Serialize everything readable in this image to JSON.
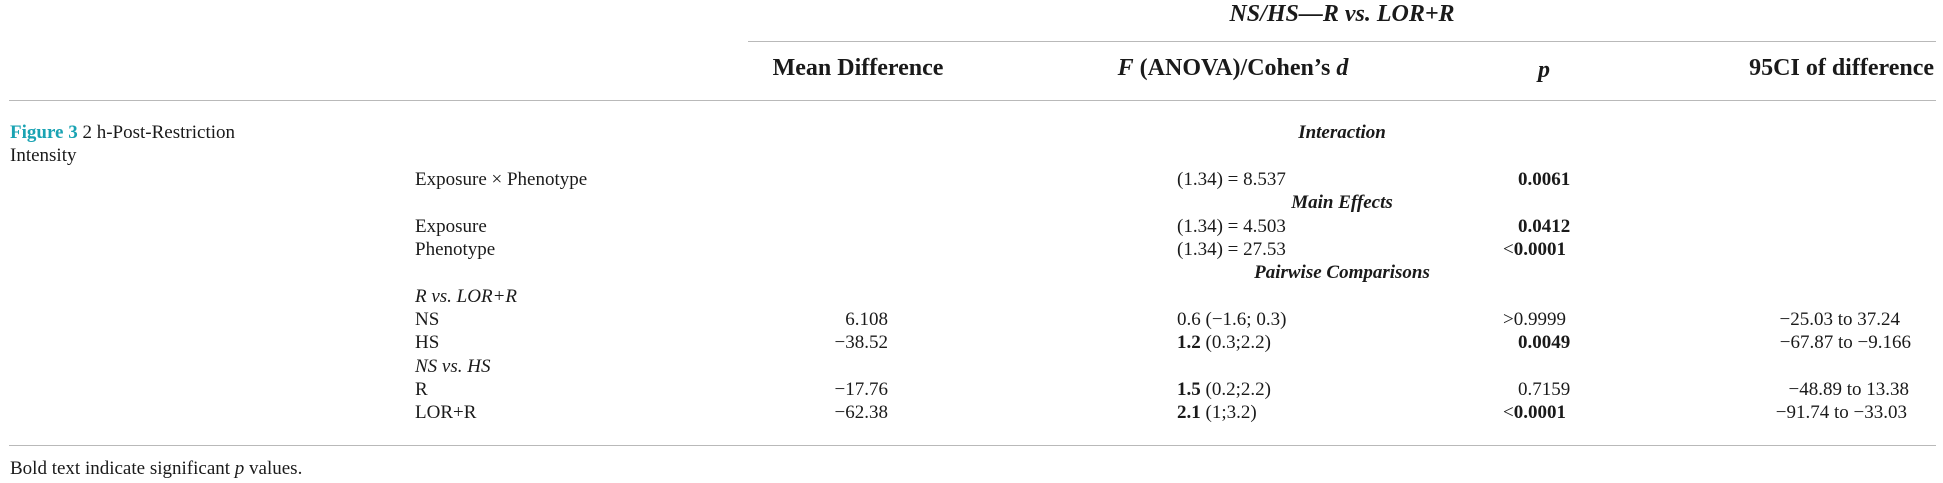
{
  "table": {
    "group_header": "NS/HS—R vs. LOR+R",
    "columns": {
      "mean_difference": "Mean Difference",
      "f_italic": "F",
      "f_rest": " (ANOVA)/Cohen’s ",
      "d_italic": "d",
      "p": "p",
      "ci": "95CI of difference"
    },
    "caption": {
      "label": "Figure 3",
      "line1": " 2 h-Post-Restriction",
      "line2": "Intensity"
    },
    "sections": {
      "interaction": "Interaction",
      "main_effects": "Main Effects",
      "pairwise": "Pairwise Comparisons"
    },
    "rows": {
      "exposure_x_phenotype": {
        "label": "Exposure × Phenotype",
        "f": "(1.34) = 8.537",
        "p": "0.0061"
      },
      "exposure": {
        "label": "Exposure",
        "f": "(1.34) = 4.503",
        "p": "0.0412"
      },
      "phenotype": {
        "label": "Phenotype",
        "f": "(1.34) = 27.53",
        "p_prefix": "<",
        "p": "0.0001"
      }
    },
    "subgroups": {
      "r_vs_lor": "R vs. LOR+R",
      "ns_vs_hs": "NS vs. HS"
    },
    "pairwise_rows": {
      "ns": {
        "label": "NS",
        "mean": "6.108",
        "d_bold": "",
        "d_rest": "0.6 (−1.6; 0.3)",
        "p_prefix": "",
        "p_plain": ">0.9999",
        "p_bold": "",
        "ci": "−25.03 to 37.24"
      },
      "hs": {
        "label": "HS",
        "mean": "−38.52",
        "d_bold": "1.2",
        "d_rest": " (0.3;2.2)",
        "p_prefix": "",
        "p_plain": "",
        "p_bold": "0.0049",
        "ci": "−67.87 to −9.166"
      },
      "r": {
        "label": "R",
        "mean": "−17.76",
        "d_bold": "1.5",
        "d_rest": " (0.2;2.2)",
        "p_prefix": "",
        "p_plain": "0.7159",
        "p_bold": "",
        "ci": "−48.89 to 13.38"
      },
      "lor_r": {
        "label": "LOR+R",
        "mean": "−62.38",
        "d_bold": "2.1",
        "d_rest": " (1;3.2)",
        "p_prefix": "<",
        "p_plain": "",
        "p_bold": "0.0001",
        "ci": "−91.74 to −33.03"
      }
    },
    "footnote": {
      "before": "Bold text indicate significant ",
      "p_italic": "p",
      "after": " values."
    }
  }
}
